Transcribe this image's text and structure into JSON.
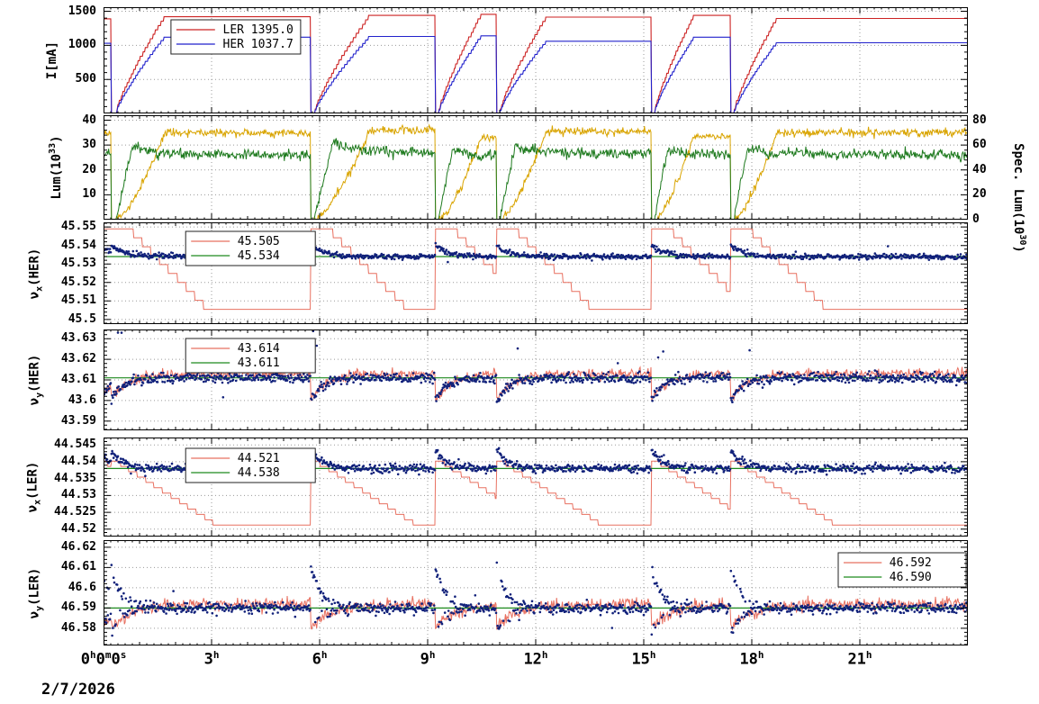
{
  "chart_data": {
    "type": "line",
    "description": "Accelerator beam status strip charts: currents, luminosity and betatron tunes vs time of day",
    "date_label": "2/7/2026",
    "x": {
      "lim": [
        0,
        24
      ],
      "minor": 1,
      "ticks": [
        {
          "t": 0,
          "parts": [
            [
              "0",
              "h"
            ],
            [
              "0",
              "m"
            ],
            [
              "0",
              "s"
            ]
          ]
        },
        {
          "t": 3,
          "parts": [
            [
              "3",
              "h"
            ]
          ]
        },
        {
          "t": 6,
          "parts": [
            [
              "6",
              "h"
            ]
          ]
        },
        {
          "t": 9,
          "parts": [
            [
              "9",
              "h"
            ]
          ]
        },
        {
          "t": 12,
          "parts": [
            [
              "12",
              "h"
            ]
          ]
        },
        {
          "t": 15,
          "parts": [
            [
              "15",
              "h"
            ]
          ]
        },
        {
          "t": 18,
          "parts": [
            [
              "18",
              "h"
            ]
          ]
        },
        {
          "t": 21,
          "parts": [
            [
              "21",
              "h"
            ]
          ]
        }
      ]
    },
    "dumps": [
      0.2,
      5.75,
      9.2,
      10.9,
      15.2,
      17.4
    ],
    "fills": [
      {
        "start": -1.0,
        "full": -0.5,
        "end": 0.2
      },
      {
        "start": 0.35,
        "full": 1.7,
        "end": 5.75
      },
      {
        "start": 5.85,
        "full": 7.4,
        "end": 9.2
      },
      {
        "start": 9.3,
        "full": 10.5,
        "end": 10.9
      },
      {
        "start": 11.0,
        "full": 12.3,
        "end": 15.2
      },
      {
        "start": 15.3,
        "full": 16.4,
        "end": 17.4
      },
      {
        "start": 17.5,
        "full": 18.7,
        "end": 24.2
      }
    ],
    "panels": [
      {
        "key": "current",
        "ylabel": {
          "base": "I[mA]"
        },
        "ylim": [
          0,
          1560
        ],
        "yminor": 100,
        "yticks": {
          "values": [
            500,
            1000,
            1500
          ],
          "labels": [
            "500",
            "1000",
            "1500"
          ]
        },
        "legend": {
          "x1": 0.078,
          "x2": 0.228,
          "y": 14,
          "rows": [
            {
              "label": "LER",
              "value": "1395.0",
              "color": "#cc2222"
            },
            {
              "label": "HER",
              "value": "1037.7",
              "color": "#2222cc"
            }
          ]
        },
        "series": [
          {
            "name": "LER current",
            "gen": "current",
            "color": "#cc2222",
            "tops": [
              1390,
              1420,
              1440,
              1455,
              1415,
              1440,
              1395
            ]
          },
          {
            "name": "HER current",
            "gen": "current",
            "color": "#2222cc",
            "tops": [
              1030,
              1120,
              1130,
              1140,
              1060,
              1120,
              1038
            ]
          }
        ]
      },
      {
        "key": "luminosity",
        "ylabel": {
          "base": "Lum(10",
          "sup": "33",
          "after": ")"
        },
        "right_label": {
          "base": "Spec. Lum(10",
          "sup": "30",
          "after": ")"
        },
        "ylim": [
          0,
          42
        ],
        "yminor": 2,
        "yticks": {
          "values": [
            10,
            20,
            30,
            40
          ],
          "labels": [
            "10",
            "20",
            "30",
            "40"
          ]
        },
        "right_axis": {
          "lim": [
            0,
            84
          ],
          "ticks": {
            "values": [
              0,
              20,
              40,
              60,
              80
            ],
            "labels": [
              "0",
              "20",
              "40",
              "60",
              "80"
            ]
          }
        },
        "series": [
          {
            "name": "luminosity",
            "gen": "lum",
            "color": "#d9a400",
            "levels": [
              35,
              35,
              36,
              33,
              35.5,
              33.5,
              35
            ],
            "noise": 0.8
          },
          {
            "name": "specific luminosity",
            "gen": "spec",
            "color": "#1e7a1e",
            "levels": [
              52,
              52,
              54,
              50,
              53,
              51,
              52
            ],
            "boost": 10,
            "noise": 2.0,
            "scale": 0.5
          }
        ]
      },
      {
        "key": "nux_her",
        "ylabel": {
          "base": "ν",
          "sub": "x",
          "after": "(HER)"
        },
        "ylim": [
          45.4975,
          45.5525
        ],
        "yminor": 0.002,
        "yticks": {
          "values": [
            45.5,
            45.51,
            45.52,
            45.53,
            45.54,
            45.55
          ],
          "labels": [
            "45.5",
            "45.51",
            "45.52",
            "45.53",
            "45.54",
            "45.55"
          ]
        },
        "legend": {
          "x1": 0.095,
          "x2": 0.245,
          "y": 10,
          "rows": [
            {
              "value": "45.505",
              "color": "#e87060"
            },
            {
              "value": "45.534",
              "color": "#1e8a1e"
            }
          ]
        },
        "series": [
          {
            "name": "nux knob",
            "gen": "stepdown",
            "color": "#e87060",
            "high": 45.549,
            "low": 45.5055,
            "hold": 0.5,
            "dur": 2.2,
            "steps": 9
          },
          {
            "name": "nux reference",
            "gen": "hline",
            "color": "#1e8a1e",
            "value": 45.534
          },
          {
            "name": "nux measured",
            "gen": "scatter",
            "color": "#10207a",
            "base": 45.534,
            "sigma": 0.0007,
            "tr": {
              "amp": 0.0065,
              "tau": 0.35
            },
            "out_rate": 0.004,
            "out_amp": 0.006
          }
        ]
      },
      {
        "key": "nuy_her",
        "ylabel": {
          "base": "ν",
          "sub": "y",
          "after": "(HER)"
        },
        "ylim": [
          43.5855,
          43.6345
        ],
        "yminor": 0.002,
        "yticks": {
          "values": [
            43.59,
            43.6,
            43.61,
            43.62,
            43.63
          ],
          "labels": [
            "43.59",
            "43.6",
            "43.61",
            "43.62",
            "43.63"
          ]
        },
        "legend": {
          "x1": 0.095,
          "x2": 0.245,
          "y": 10,
          "rows": [
            {
              "value": "43.614",
              "color": "#e87060"
            },
            {
              "value": "43.611",
              "color": "#1e8a1e"
            }
          ]
        },
        "series": [
          {
            "name": "nuy knob",
            "gen": "noisydip",
            "color": "#e87060",
            "base": 43.613,
            "sigma": 0.0012,
            "dip": 0.013,
            "tau": 0.45
          },
          {
            "name": "nuy reference",
            "gen": "hline",
            "color": "#1e8a1e",
            "value": 43.611
          },
          {
            "name": "nuy measured",
            "gen": "scatter",
            "color": "#10207a",
            "base": 43.611,
            "sigma": 0.0012,
            "tr": {
              "amp": -0.012,
              "tau": 0.3
            },
            "burst": {
              "win": 0.6,
              "rate": 0.07,
              "amp": 0.016
            },
            "out_rate": 0.004,
            "out_amp": 0.01
          }
        ]
      },
      {
        "key": "nux_ler",
        "ylabel": {
          "base": "ν",
          "sub": "x",
          "after": "(LER)"
        },
        "ylim": [
          44.5178,
          44.5472
        ],
        "yminor": 0.001,
        "yticks": {
          "values": [
            44.52,
            44.525,
            44.53,
            44.535,
            44.54,
            44.545
          ],
          "labels": [
            "44.52",
            "44.525",
            "44.53",
            "44.535",
            "44.54",
            "44.545"
          ]
        },
        "legend": {
          "x1": 0.095,
          "x2": 0.245,
          "y": 12,
          "rows": [
            {
              "value": "44.521",
              "color": "#e87060"
            },
            {
              "value": "44.538",
              "color": "#1e8a1e"
            }
          ]
        },
        "series": [
          {
            "name": "nux knob",
            "gen": "stepdown",
            "color": "#e87060",
            "high": 44.5402,
            "low": 44.5212,
            "hold": 0.15,
            "dur": 2.8,
            "steps": 12
          },
          {
            "name": "nux reference",
            "gen": "hline",
            "color": "#1e8a1e",
            "value": 44.538
          },
          {
            "name": "nux measured",
            "gen": "scatter",
            "color": "#10207a",
            "base": 44.538,
            "sigma": 0.0006,
            "tr": {
              "amp": 0.006,
              "tau": 0.3
            },
            "out_rate": 0.004,
            "out_amp": 0.005
          }
        ]
      },
      {
        "key": "nuy_ler",
        "ylabel": {
          "base": "ν",
          "sub": "y",
          "after": "(LER)"
        },
        "ylim": [
          46.5715,
          46.6235
        ],
        "yminor": 0.002,
        "yticks": {
          "values": [
            46.58,
            46.59,
            46.6,
            46.61,
            46.62
          ],
          "labels": [
            "46.58",
            "46.59",
            "46.6",
            "46.61",
            "46.62"
          ]
        },
        "legend": {
          "x1": 0.85,
          "x2": 0.998,
          "y": 14,
          "rows": [
            {
              "value": "46.592",
              "color": "#e87060"
            },
            {
              "value": "46.590",
              "color": "#1e8a1e"
            }
          ]
        },
        "series": [
          {
            "name": "nuy knob",
            "gen": "noisydip",
            "color": "#e87060",
            "base": 46.592,
            "sigma": 0.0015,
            "dip": 0.012,
            "tau": 0.6
          },
          {
            "name": "nuy reference",
            "gen": "hline",
            "color": "#1e8a1e",
            "value": 46.59
          },
          {
            "name": "nuy measured",
            "gen": "scatter",
            "color": "#10207a",
            "base": 46.59,
            "sigma": 0.0013,
            "tr": {
              "mix": true,
              "amp": 0.021,
              "amp2": 0.013,
              "tau": 0.28
            },
            "out_rate": 0.003,
            "out_amp": 0.01
          }
        ]
      }
    ]
  }
}
